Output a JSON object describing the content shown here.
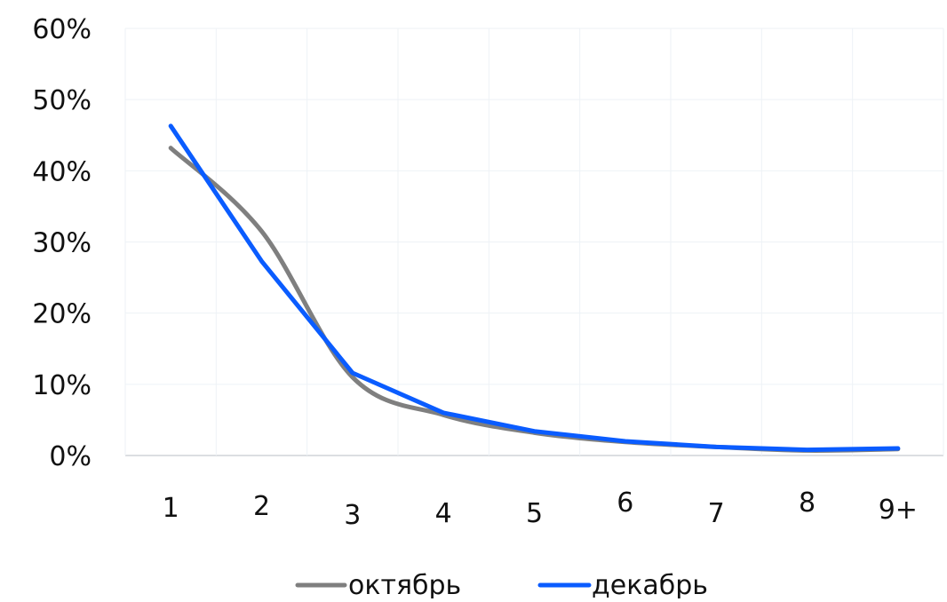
{
  "chart_data": {
    "type": "line",
    "categories": [
      "1",
      "2",
      "3",
      "4",
      "5",
      "6",
      "7",
      "8",
      "9+"
    ],
    "y_ticks": [
      "0%",
      "10%",
      "20%",
      "30%",
      "40%",
      "50%",
      "60%"
    ],
    "ylim": [
      0,
      60
    ],
    "grid": true,
    "legend_placement": "bottom",
    "series": [
      {
        "name": "октябрь",
        "color": "#7f7f7f",
        "values": [
          43.2,
          31.5,
          11.0,
          5.7,
          3.2,
          1.9,
          1.2,
          0.7,
          0.9
        ]
      },
      {
        "name": "декабрь",
        "color": "#0a5cff",
        "values": [
          46.3,
          27.3,
          11.6,
          6.0,
          3.4,
          2.0,
          1.2,
          0.8,
          1.0
        ]
      }
    ]
  }
}
